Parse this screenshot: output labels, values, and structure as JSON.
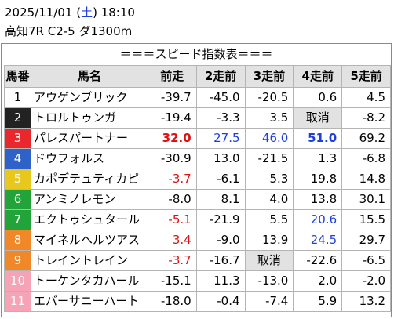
{
  "header": {
    "date_prefix": "2025/11/01 (",
    "weekday": "土",
    "date_suffix": ") 18:10",
    "race_info": "高知7R C2-5 ダ1300m"
  },
  "banner": "＝＝＝スピード指数表＝＝＝",
  "columns": [
    "馬番",
    "馬名",
    "前走",
    "2走前",
    "3走前",
    "4走前",
    "5走前"
  ],
  "colors": {
    "up": "#e01010",
    "down": "#1e3fd8",
    "frame": [
      "#ffffff",
      "#222222",
      "#e8282d",
      "#2e62c8",
      "#e8c81e",
      "#22a43a",
      "#f0882a",
      "#f5a3b5"
    ],
    "cancel_bg": "#e2e2e2"
  },
  "rows": [
    {
      "no": "1",
      "frame": 1,
      "name": "アウゲンブリック",
      "c": [
        {
          "v": "-39.7"
        },
        {
          "v": "-45.0"
        },
        {
          "v": "-20.5"
        },
        {
          "v": "0.6"
        },
        {
          "v": "4.5"
        }
      ]
    },
    {
      "no": "2",
      "frame": 2,
      "name": "トロルトゥンガ",
      "c": [
        {
          "v": "-19.4"
        },
        {
          "v": "-3.3"
        },
        {
          "v": "3.5"
        },
        {
          "v": "取消",
          "cancel": true
        },
        {
          "v": "-8.2"
        }
      ]
    },
    {
      "no": "3",
      "frame": 3,
      "name": "パレスパートナー",
      "c": [
        {
          "v": "32.0",
          "color": "up",
          "bold": true
        },
        {
          "v": "27.5",
          "color": "down"
        },
        {
          "v": "46.0",
          "color": "down"
        },
        {
          "v": "51.0",
          "color": "down",
          "bold": true
        },
        {
          "v": "69.2"
        }
      ]
    },
    {
      "no": "4",
      "frame": 4,
      "name": "ドウフォルス",
      "c": [
        {
          "v": "-30.9"
        },
        {
          "v": "13.0"
        },
        {
          "v": "-21.5"
        },
        {
          "v": "1.3"
        },
        {
          "v": "-6.8"
        }
      ]
    },
    {
      "no": "5",
      "frame": 5,
      "name": "カポデテュティカピ",
      "c": [
        {
          "v": "-3.7",
          "color": "up"
        },
        {
          "v": "-6.1"
        },
        {
          "v": "5.3"
        },
        {
          "v": "19.8"
        },
        {
          "v": "14.8"
        }
      ]
    },
    {
      "no": "6",
      "frame": 6,
      "name": "アンミノレモン",
      "c": [
        {
          "v": "-8.0"
        },
        {
          "v": "8.1"
        },
        {
          "v": "4.0"
        },
        {
          "v": "13.8"
        },
        {
          "v": "30.1"
        }
      ]
    },
    {
      "no": "7",
      "frame": 6,
      "name": "エクトゥシュタール",
      "c": [
        {
          "v": "-5.1",
          "color": "up"
        },
        {
          "v": "-21.9"
        },
        {
          "v": "5.5"
        },
        {
          "v": "20.6",
          "color": "down"
        },
        {
          "v": "15.5"
        }
      ]
    },
    {
      "no": "8",
      "frame": 7,
      "name": "マイネルヘルツアス",
      "c": [
        {
          "v": "3.4",
          "color": "up"
        },
        {
          "v": "-9.0"
        },
        {
          "v": "13.9"
        },
        {
          "v": "24.5",
          "color": "down"
        },
        {
          "v": "29.7"
        }
      ]
    },
    {
      "no": "9",
      "frame": 7,
      "name": "トレイントレイン",
      "c": [
        {
          "v": "-3.7",
          "color": "up"
        },
        {
          "v": "-16.7"
        },
        {
          "v": "取消",
          "cancel": true
        },
        {
          "v": "-22.6"
        },
        {
          "v": "-6.5"
        }
      ]
    },
    {
      "no": "10",
      "frame": 8,
      "name": "トーケンタカハール",
      "c": [
        {
          "v": "-15.1"
        },
        {
          "v": "11.3"
        },
        {
          "v": "-13.0"
        },
        {
          "v": "2.0"
        },
        {
          "v": "-2.0"
        }
      ]
    },
    {
      "no": "11",
      "frame": 8,
      "name": "エバーサニーハート",
      "c": [
        {
          "v": "-18.0"
        },
        {
          "v": "-0.4"
        },
        {
          "v": "-7.4"
        },
        {
          "v": "5.9"
        },
        {
          "v": "13.2"
        }
      ]
    }
  ]
}
